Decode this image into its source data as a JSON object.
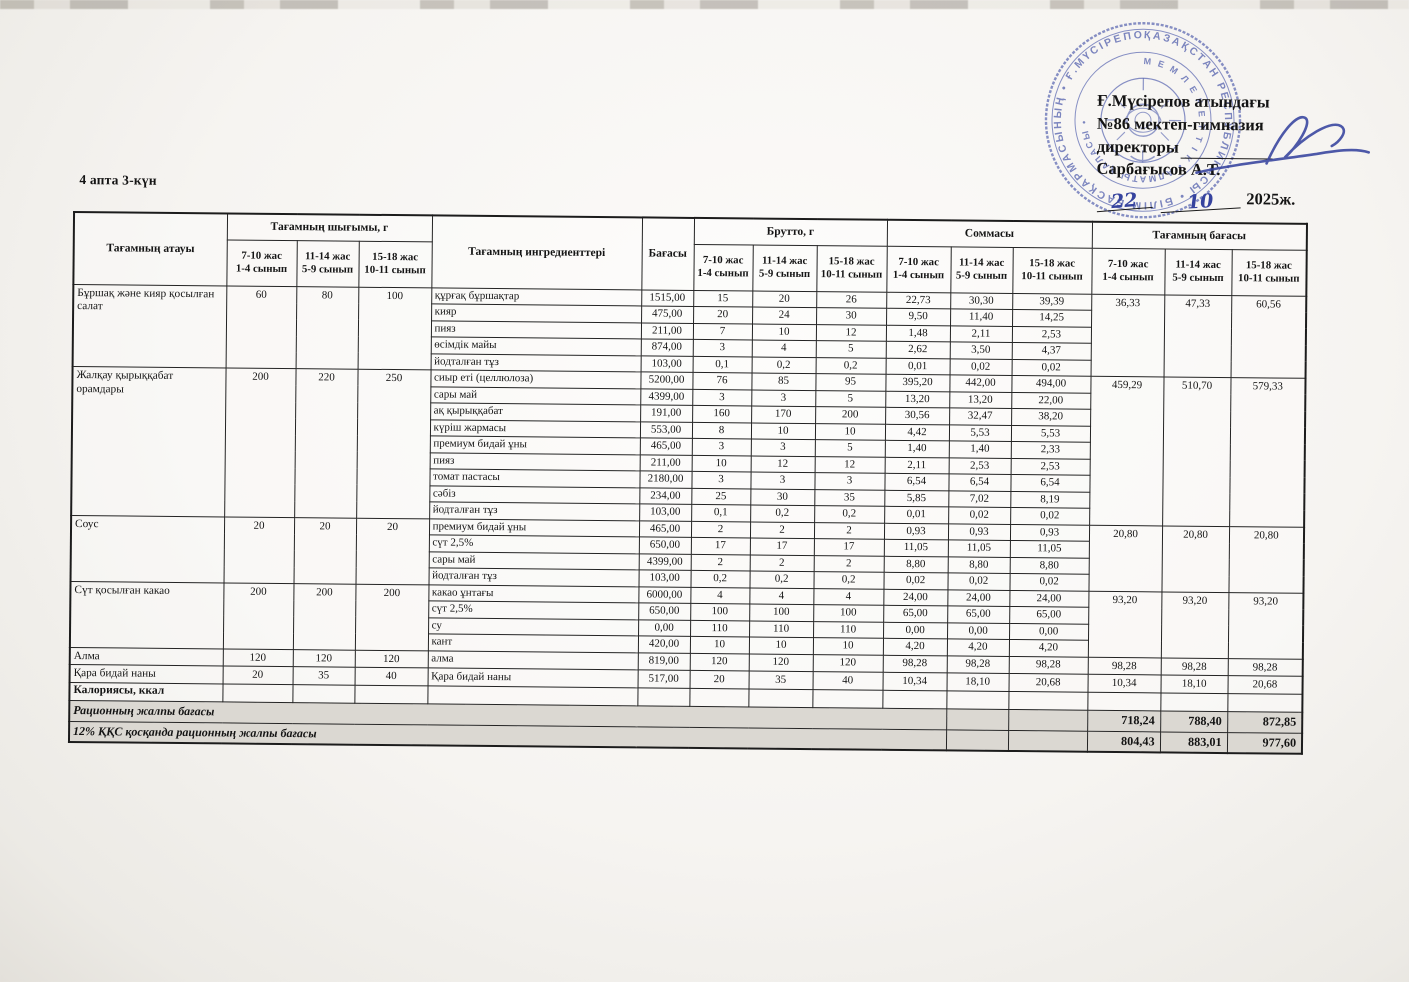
{
  "document": {
    "week_day_label": "4 апта 3-күн"
  },
  "approval": {
    "org_line1": "Ғ.Мүсірепов атындағы",
    "org_line2": "№86 мектеп-гимназия",
    "role_label": "директоры",
    "director_name": "Сарбағысов А.Т.",
    "handwritten_day": "22",
    "handwritten_month": "10",
    "year_label": "2025ж.",
    "stamp": {
      "color": "#4150a6",
      "outer_ring_text": "ҚАЗАҚСТАН РЕСПУБЛИКАСЫ • БІЛІМ БАСҚАРМАСЫНЫҢ • Ғ.МҮСІРЕПОВ АТЫНДАҒЫ •",
      "inner_ring_text": "М Е М Л Е К Е Т Т І К  •  АЛМАТЫ ҚАЛАСЫ  •"
    }
  },
  "table": {
    "headers": {
      "dish": "Тағамның атауы",
      "output": "Тағамның шығымы, г",
      "ingredients": "Тағамның ингредиенттері",
      "price": "Бағасы",
      "brutto": "Брутто, г",
      "sum": "Соммасы",
      "dish_price": "Тағамның бағасы",
      "age_groups": [
        {
          "line1": "7-10 жас",
          "line2": "1-4 сынып"
        },
        {
          "line1": "11-14 жас",
          "line2": "5-9 сынып"
        },
        {
          "line1": "15-18 жас",
          "line2": "10-11 сынып"
        }
      ]
    },
    "dishes": [
      {
        "name": "Бұршақ және кияр қосылған салат",
        "output": [
          "60",
          "80",
          "100"
        ],
        "price": [
          "36,33",
          "47,33",
          "60,56"
        ],
        "ingredients": [
          {
            "name": "құрғақ бұршақтар",
            "price": "1515,00",
            "brutto": [
              "15",
              "20",
              "26"
            ],
            "sum": [
              "22,73",
              "30,30",
              "39,39"
            ]
          },
          {
            "name": "кияр",
            "price": "475,00",
            "brutto": [
              "20",
              "24",
              "30"
            ],
            "sum": [
              "9,50",
              "11,40",
              "14,25"
            ]
          },
          {
            "name": "пияз",
            "price": "211,00",
            "brutto": [
              "7",
              "10",
              "12"
            ],
            "sum": [
              "1,48",
              "2,11",
              "2,53"
            ]
          },
          {
            "name": "өсімдік майы",
            "price": "874,00",
            "brutto": [
              "3",
              "4",
              "5"
            ],
            "sum": [
              "2,62",
              "3,50",
              "4,37"
            ]
          },
          {
            "name": "йодталған тұз",
            "price": "103,00",
            "brutto": [
              "0,1",
              "0,2",
              "0,2"
            ],
            "sum": [
              "0,01",
              "0,02",
              "0,02"
            ]
          }
        ]
      },
      {
        "name": "Жалқау қырыққабат орамдары",
        "output": [
          "200",
          "220",
          "250"
        ],
        "price": [
          "459,29",
          "510,70",
          "579,33"
        ],
        "ingredients": [
          {
            "name": "сиыр еті (целлюлоза)",
            "price": "5200,00",
            "brutto": [
              "76",
              "85",
              "95"
            ],
            "sum": [
              "395,20",
              "442,00",
              "494,00"
            ]
          },
          {
            "name": "сары май",
            "price": "4399,00",
            "brutto": [
              "3",
              "3",
              "5"
            ],
            "sum": [
              "13,20",
              "13,20",
              "22,00"
            ]
          },
          {
            "name": "ақ қырыққабат",
            "price": "191,00",
            "brutto": [
              "160",
              "170",
              "200"
            ],
            "sum": [
              "30,56",
              "32,47",
              "38,20"
            ]
          },
          {
            "name": "күріш жармасы",
            "price": "553,00",
            "brutto": [
              "8",
              "10",
              "10"
            ],
            "sum": [
              "4,42",
              "5,53",
              "5,53"
            ]
          },
          {
            "name": "премиум бидай ұны",
            "price": "465,00",
            "brutto": [
              "3",
              "3",
              "5"
            ],
            "sum": [
              "1,40",
              "1,40",
              "2,33"
            ]
          },
          {
            "name": "пияз",
            "price": "211,00",
            "brutto": [
              "10",
              "12",
              "12"
            ],
            "sum": [
              "2,11",
              "2,53",
              "2,53"
            ]
          },
          {
            "name": "томат пастасы",
            "price": "2180,00",
            "brutto": [
              "3",
              "3",
              "3"
            ],
            "sum": [
              "6,54",
              "6,54",
              "6,54"
            ]
          },
          {
            "name": "сәбіз",
            "price": "234,00",
            "brutto": [
              "25",
              "30",
              "35"
            ],
            "sum": [
              "5,85",
              "7,02",
              "8,19"
            ]
          },
          {
            "name": "йодталған тұз",
            "price": "103,00",
            "brutto": [
              "0,1",
              "0,2",
              "0,2"
            ],
            "sum": [
              "0,01",
              "0,02",
              "0,02"
            ]
          }
        ]
      },
      {
        "name": "Соус",
        "output": [
          "20",
          "20",
          "20"
        ],
        "price": [
          "20,80",
          "20,80",
          "20,80"
        ],
        "ingredients": [
          {
            "name": "премиум бидай ұны",
            "price": "465,00",
            "brutto": [
              "2",
              "2",
              "2"
            ],
            "sum": [
              "0,93",
              "0,93",
              "0,93"
            ]
          },
          {
            "name": "сүт 2,5%",
            "price": "650,00",
            "brutto": [
              "17",
              "17",
              "17"
            ],
            "sum": [
              "11,05",
              "11,05",
              "11,05"
            ]
          },
          {
            "name": "сары май",
            "price": "4399,00",
            "brutto": [
              "2",
              "2",
              "2"
            ],
            "sum": [
              "8,80",
              "8,80",
              "8,80"
            ]
          },
          {
            "name": "йодталған тұз",
            "price": "103,00",
            "brutto": [
              "0,2",
              "0,2",
              "0,2"
            ],
            "sum": [
              "0,02",
              "0,02",
              "0,02"
            ]
          }
        ]
      },
      {
        "name": "Сүт қосылған какао",
        "output": [
          "200",
          "200",
          "200"
        ],
        "price": [
          "93,20",
          "93,20",
          "93,20"
        ],
        "ingredients": [
          {
            "name": "какао ұнтағы",
            "price": "6000,00",
            "brutto": [
              "4",
              "4",
              "4"
            ],
            "sum": [
              "24,00",
              "24,00",
              "24,00"
            ]
          },
          {
            "name": "сүт 2,5%",
            "price": "650,00",
            "brutto": [
              "100",
              "100",
              "100"
            ],
            "sum": [
              "65,00",
              "65,00",
              "65,00"
            ]
          },
          {
            "name": "су",
            "price": "0,00",
            "brutto": [
              "110",
              "110",
              "110"
            ],
            "sum": [
              "0,00",
              "0,00",
              "0,00"
            ]
          },
          {
            "name": "кант",
            "price": "420,00",
            "brutto": [
              "10",
              "10",
              "10"
            ],
            "sum": [
              "4,20",
              "4,20",
              "4,20"
            ]
          }
        ]
      },
      {
        "name": "Алма",
        "output": [
          "120",
          "120",
          "120"
        ],
        "price": [
          "98,28",
          "98,28",
          "98,28"
        ],
        "ingredients": [
          {
            "name": "алма",
            "price": "819,00",
            "brutto": [
              "120",
              "120",
              "120"
            ],
            "sum": [
              "98,28",
              "98,28",
              "98,28"
            ]
          }
        ]
      },
      {
        "name": "Қара бидай наны",
        "output": [
          "20",
          "35",
          "40"
        ],
        "price": [
          "10,34",
          "18,10",
          "20,68"
        ],
        "ingredients": [
          {
            "name": "Қара бидай наны",
            "price": "517,00",
            "brutto": [
              "20",
              "35",
              "40"
            ],
            "sum": [
              "10,34",
              "18,10",
              "20,68"
            ]
          }
        ]
      }
    ],
    "calories_label": "Калориясы, ккал",
    "totals": [
      {
        "label": "Рационның жалпы бағасы",
        "values": [
          "718,24",
          "788,40",
          "872,85"
        ]
      },
      {
        "label": "12% ҚҚС қосқанда рационның жалпы бағасы",
        "values": [
          "804,43",
          "883,01",
          "977,60"
        ]
      }
    ]
  }
}
